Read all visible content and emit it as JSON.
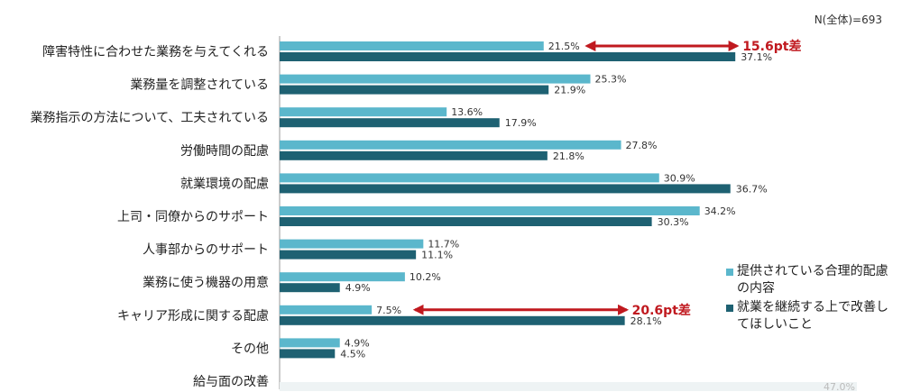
{
  "note": "N(全体)=693",
  "colors": {
    "series1": "#5bb7cc",
    "series2": "#1e6172",
    "callout": "#c0191f",
    "axis": "#999999",
    "ghost": "#eef3f4"
  },
  "chart_data": {
    "type": "bar",
    "orientation": "horizontal",
    "xlim": [
      0,
      47.0
    ],
    "categories": [
      "障害特性に合わせた業務を与えてくれる",
      "業務量を調整されている",
      "業務指示の方法について、工夫されている",
      "労働時間の配慮",
      "就業環境の配慮",
      "上司・同僚からのサポート",
      "人事部からのサポート",
      "業務に使う機器の用意",
      "キャリア形成に関する配慮",
      "その他",
      "給与面の改善"
    ],
    "series": [
      {
        "name": "提供されている合理的配慮の内容",
        "values": [
          21.5,
          25.3,
          13.6,
          27.8,
          30.9,
          34.2,
          11.7,
          10.2,
          7.5,
          4.9,
          null
        ],
        "labels": [
          "21.5%",
          "25.3%",
          "13.6%",
          "27.8%",
          "30.9%",
          "34.2%",
          "11.7%",
          "10.2%",
          "7.5%",
          "4.9%",
          ""
        ]
      },
      {
        "name": "就業を継続する上で改善してほしいこと",
        "values": [
          37.1,
          21.9,
          17.9,
          21.8,
          36.7,
          30.3,
          11.1,
          4.9,
          28.1,
          4.5,
          47.0
        ],
        "labels": [
          "37.1%",
          "21.9%",
          "17.9%",
          "21.8%",
          "36.7%",
          "30.3%",
          "11.1%",
          "4.9%",
          "28.1%",
          "4.5%",
          "47.0%"
        ]
      }
    ],
    "annotations": [
      {
        "category_index": 0,
        "text": "15.6pt差",
        "from": 21.5,
        "to": 37.1
      },
      {
        "category_index": 8,
        "text": "20.6pt差",
        "from": 7.5,
        "to": 28.1
      }
    ],
    "legend": "right"
  }
}
